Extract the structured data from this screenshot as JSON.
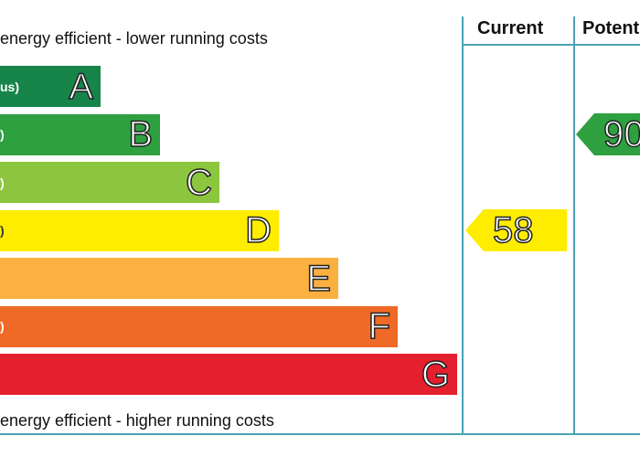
{
  "captions": {
    "top": "energy efficient - lower running costs",
    "bottom": "energy efficient - higher running costs"
  },
  "columns": {
    "current": "Current",
    "potential": "Potent"
  },
  "chart_data": {
    "type": "bar",
    "categories": [
      "A",
      "B",
      "C",
      "D",
      "E",
      "F",
      "G"
    ],
    "bands": [
      {
        "letter": "A",
        "range": "us)",
        "color": "#17854a"
      },
      {
        "letter": "B",
        "range": ")",
        "color": "#2ea040"
      },
      {
        "letter": "C",
        "range": ")",
        "color": "#8cc63f"
      },
      {
        "letter": "D",
        "range": ")",
        "color": "#ffed00"
      },
      {
        "letter": "E",
        "range": "",
        "color": "#fbb040"
      },
      {
        "letter": "F",
        "range": ")",
        "color": "#ef6a26"
      },
      {
        "letter": "G",
        "range": "",
        "color": "#e4202e"
      }
    ],
    "current": {
      "value": "58",
      "band": "D",
      "color": "#ffed00"
    },
    "potential": {
      "value": "90",
      "band": "B",
      "color": "#2ea040"
    }
  }
}
